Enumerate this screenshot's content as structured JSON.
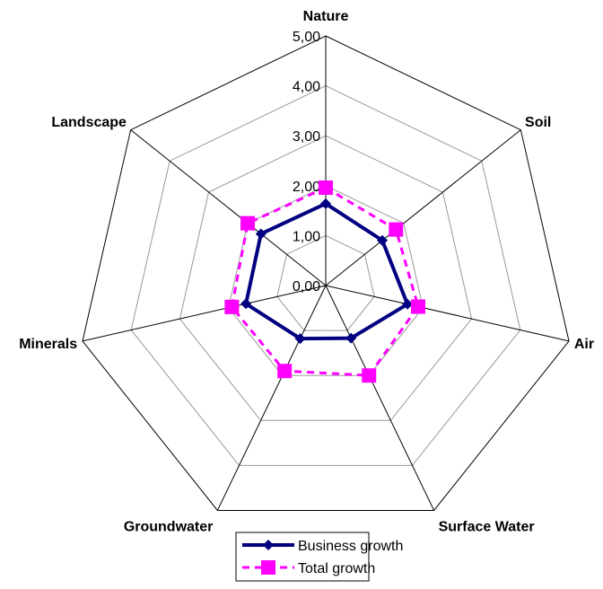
{
  "chart_data": {
    "type": "radar",
    "categories": [
      "Nature",
      "Soil",
      "Air",
      "Surface Water",
      "Groundwater",
      "Minerals",
      "Landscape"
    ],
    "series": [
      {
        "name": "Business growth",
        "color": "#000080",
        "values": [
          1.64,
          1.45,
          1.68,
          1.17,
          1.18,
          1.64,
          1.66
        ]
      },
      {
        "name": "Total growth",
        "color": "#ff00ff",
        "values": [
          1.96,
          1.8,
          1.9,
          2.0,
          1.9,
          1.93,
          2.0
        ]
      }
    ],
    "ylim": [
      0,
      5
    ],
    "yticks": [
      {
        "value": 0,
        "label": "0,00"
      },
      {
        "value": 1,
        "label": "1,00"
      },
      {
        "value": 2,
        "label": "2,00"
      },
      {
        "value": 3,
        "label": "3,00"
      },
      {
        "value": 4,
        "label": "4,00"
      },
      {
        "value": 5,
        "label": "5,00"
      }
    ],
    "legend": "bottom"
  }
}
